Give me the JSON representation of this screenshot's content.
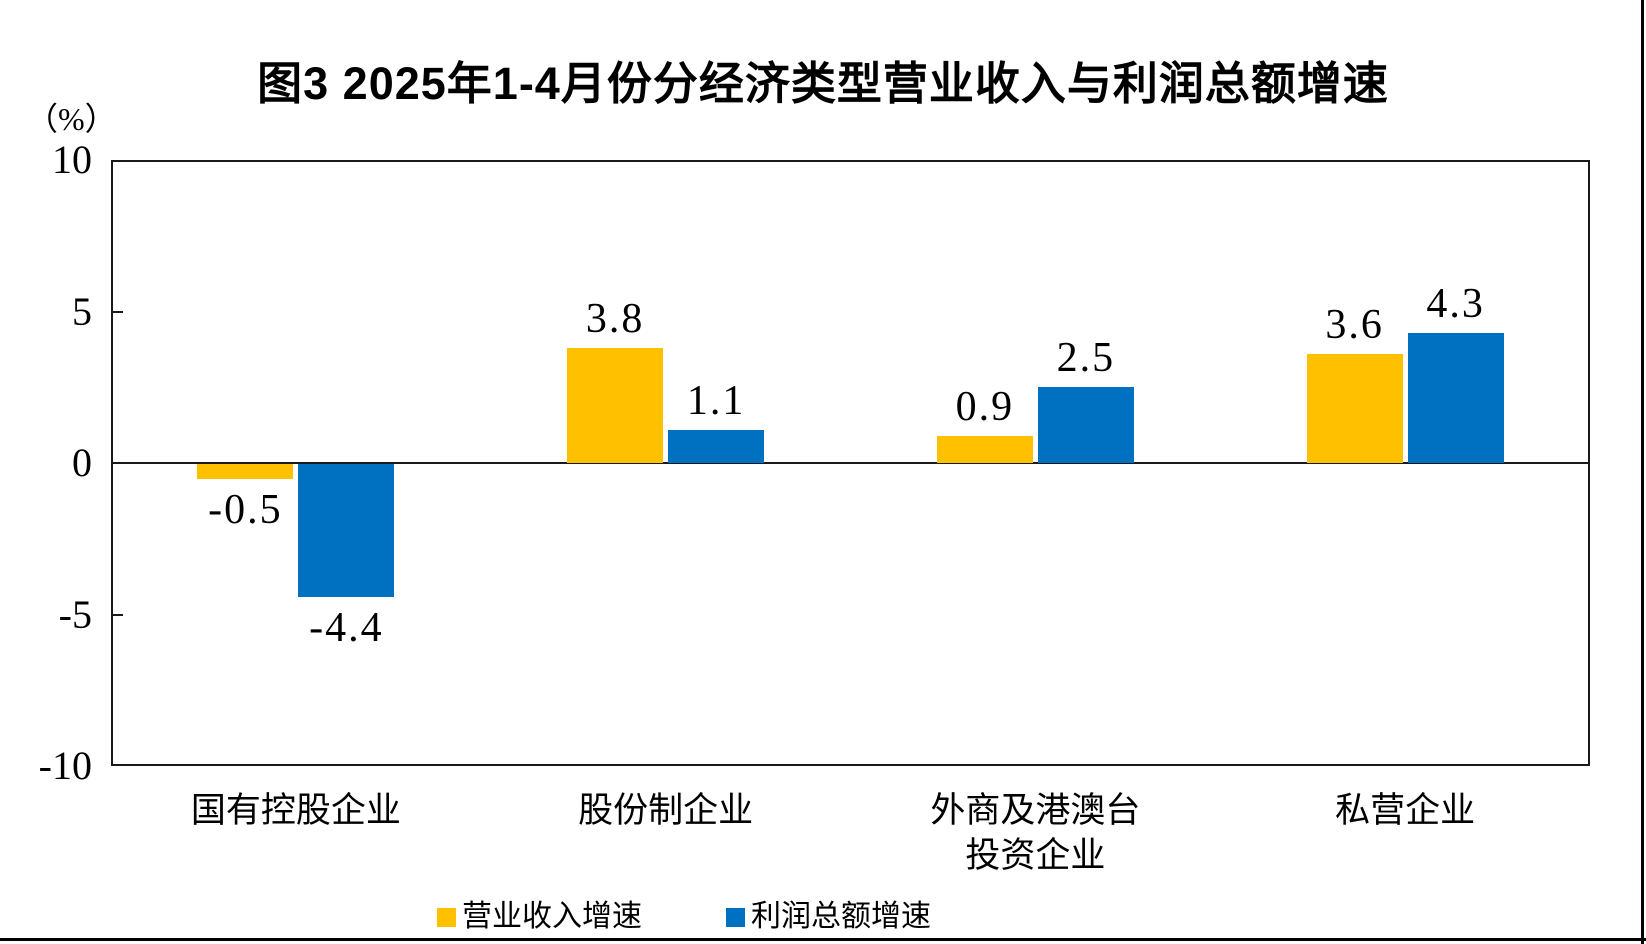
{
  "title": "图3 2025年1-4月份分经济类型营业收入与利润总额增速",
  "axis_unit": "（%）",
  "legend": [
    {
      "label": "营业收入增速",
      "color": "#FFC000"
    },
    {
      "label": "利润总额增速",
      "color": "#0070C0"
    }
  ],
  "chart_data": {
    "type": "bar",
    "title": "图3 2025年1-4月份分经济类型营业收入与利润总额增速",
    "categories": [
      "国有控股企业",
      "股份制企业",
      "外商及港澳台投资企业",
      "私营企业"
    ],
    "category_lines": [
      [
        "国有控股企业"
      ],
      [
        "股份制企业"
      ],
      [
        "外商及港澳台",
        "投资企业"
      ],
      [
        "私营企业"
      ]
    ],
    "series": [
      {
        "name": "营业收入增速",
        "color": "#FFC000",
        "values": [
          -0.5,
          3.8,
          0.9,
          3.6
        ],
        "labels": [
          "-0.5",
          "3.8",
          "0.9",
          "3.6"
        ]
      },
      {
        "name": "利润总额增速",
        "color": "#0070C0",
        "values": [
          -4.4,
          1.1,
          2.5,
          4.3
        ],
        "labels": [
          "-4.4",
          "1.1",
          "2.5",
          "4.3"
        ]
      }
    ],
    "ylabel": "（%）",
    "ylim": [
      -10,
      10
    ],
    "y_ticks": [
      10,
      5,
      0,
      -5,
      -10
    ],
    "y_tick_labels": [
      "10",
      "5",
      "0",
      "-5",
      "-10"
    ],
    "grid": false,
    "legend_position": "bottom"
  }
}
